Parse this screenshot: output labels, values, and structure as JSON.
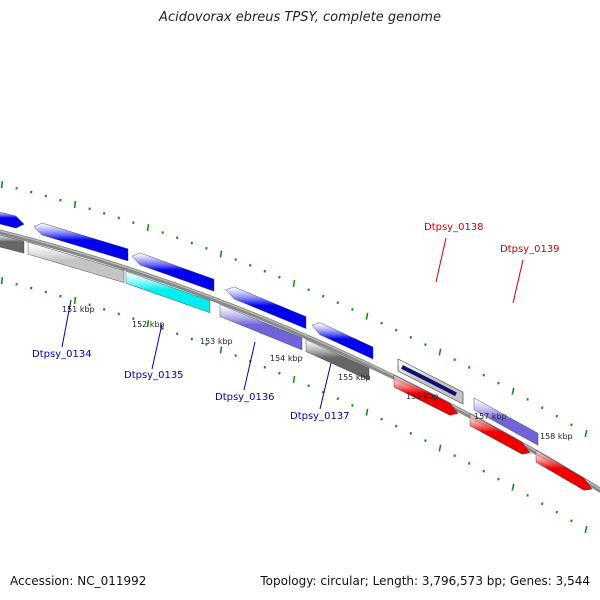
{
  "title": "Acidovorax ebreus TPSY, complete genome",
  "footer": {
    "accession": "Accession: NC_011992",
    "topology": "Topology: circular; Length: 3,796,573 bp; Genes: 3,544"
  },
  "colors": {
    "forward_gene": "#0000ee",
    "reverse_gene": "#ee0000",
    "gene_purple": "#7064d8",
    "gene_gray": "#666666",
    "gene_lightgray": "#c4c4c4",
    "gene_cyan": "#00eeee",
    "gene_navy": "#101070",
    "backbone": "#888888",
    "tick": "#1a8a1a",
    "label_blue": "#0000aa",
    "label_red": "#cc0000"
  },
  "scale_labels": [
    "151 kbp",
    "152 kbp",
    "153 kbp",
    "154 kbp",
    "155 kbp",
    "156 kbp",
    "157 kbp",
    "158 kbp"
  ],
  "gene_labels": [
    {
      "text": "Dtpsy_0134",
      "strand": "forward"
    },
    {
      "text": "Dtpsy_0135",
      "strand": "forward"
    },
    {
      "text": "Dtpsy_0136",
      "strand": "forward"
    },
    {
      "text": "Dtpsy_0137",
      "strand": "forward"
    },
    {
      "text": "Dtpsy_0138",
      "strand": "reverse"
    },
    {
      "text": "Dtpsy_0139",
      "strand": "reverse"
    }
  ]
}
